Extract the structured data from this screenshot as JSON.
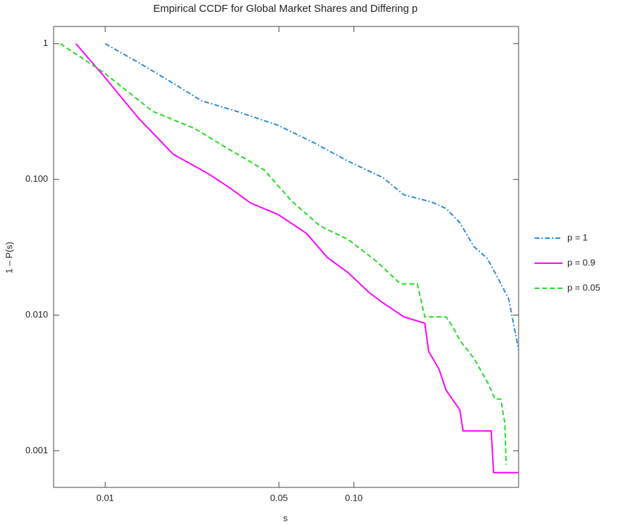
{
  "chart_data": {
    "type": "line",
    "title": "Empirical CCDF for Global Market Shares and Differing p",
    "x_label": "s",
    "y_label": "1 – P(s)",
    "xscale": "log",
    "yscale": "log",
    "xlim": [
      0.0062,
      0.46
    ],
    "ylim": [
      0.000537,
      1.34
    ],
    "xticks": [
      0.01,
      0.05,
      {
        "value": 0.1,
        "label": "0.10"
      }
    ],
    "yticks": [
      1,
      {
        "value": 0.1,
        "label": "0.100"
      },
      {
        "value": 0.01,
        "label": "0.010"
      },
      0.001
    ],
    "legend": "right",
    "series": [
      {
        "name": "p = 1",
        "color": "#2a8ae0",
        "dash": "dashdot",
        "x": [
          0.01,
          0.0136,
          0.0188,
          0.0244,
          0.0337,
          0.0497,
          0.0688,
          0.095,
          0.131,
          0.159,
          0.206,
          0.235,
          0.267,
          0.304,
          0.345,
          0.38,
          0.42,
          0.464
        ],
        "values": [
          1,
          0.727,
          0.51,
          0.38,
          0.318,
          0.25,
          0.187,
          0.136,
          0.103,
          0.077,
          0.068,
          0.061,
          0.048,
          0.032,
          0.026,
          0.0187,
          0.0131,
          0.0051
        ]
      },
      {
        "name": "p = 0.9",
        "color": "#ff00ff",
        "dash": "solid",
        "x": [
          0.00762,
          0.0099,
          0.0136,
          0.0188,
          0.026,
          0.0316,
          0.0384,
          0.0497,
          0.0645,
          0.0782,
          0.095,
          0.115,
          0.131,
          0.159,
          0.193,
          0.2,
          0.22,
          0.235,
          0.267,
          0.275,
          0.357,
          0.365,
          0.464
        ],
        "values": [
          1,
          0.574,
          0.283,
          0.153,
          0.11,
          0.087,
          0.067,
          0.055,
          0.04,
          0.0266,
          0.0205,
          0.0147,
          0.0123,
          0.0097,
          0.0087,
          0.0054,
          0.004,
          0.0028,
          0.002,
          0.0014,
          0.0014,
          0.00069,
          0.00069
        ]
      },
      {
        "name": "p = 0.05",
        "color": "#22dd22",
        "dash": "dashed",
        "x": [
          0.0066,
          0.0099,
          0.0155,
          0.0229,
          0.0316,
          0.0437,
          0.0565,
          0.0731,
          0.095,
          0.123,
          0.154,
          0.18,
          0.193,
          0.235,
          0.25,
          0.267,
          0.304,
          0.345,
          0.37,
          0.39,
          0.405,
          0.41
        ],
        "values": [
          1,
          0.61,
          0.318,
          0.237,
          0.166,
          0.117,
          0.0686,
          0.0454,
          0.036,
          0.025,
          0.017,
          0.017,
          0.0097,
          0.0097,
          0.0082,
          0.0065,
          0.0048,
          0.0032,
          0.0024,
          0.0024,
          0.0016,
          0.00079
        ]
      }
    ]
  }
}
